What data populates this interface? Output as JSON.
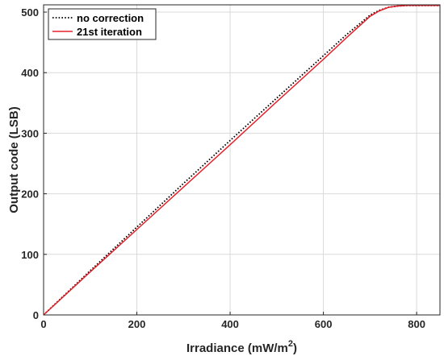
{
  "chart_data": {
    "type": "line",
    "title": "",
    "xlabel_main": "Irradiance (mW/m",
    "xlabel_sup": "2",
    "xlabel_close": ")",
    "ylabel": "Output code (LSB)",
    "xlim": [
      0,
      850
    ],
    "ylim": [
      0,
      512
    ],
    "xticks": [
      0,
      200,
      400,
      600,
      800
    ],
    "yticks": [
      0,
      100,
      200,
      300,
      400,
      500
    ],
    "grid": true,
    "legend_position": "top-left",
    "series": [
      {
        "name": "no correction",
        "color": "#000000",
        "style": "dotted",
        "x": [
          0,
          100,
          200,
          300,
          400,
          500,
          600,
          650,
          700,
          720,
          740,
          760,
          780,
          800,
          850
        ],
        "y": [
          0,
          73,
          145,
          217,
          288,
          358,
          428,
          463,
          495,
          503,
          508,
          510,
          511,
          511,
          511
        ]
      },
      {
        "name": "21st iteration",
        "color": "#e8202a",
        "style": "solid",
        "x": [
          0,
          100,
          200,
          300,
          400,
          500,
          600,
          650,
          700,
          720,
          740,
          760,
          780,
          800,
          850
        ],
        "y": [
          0,
          71,
          141,
          211,
          281,
          352,
          422,
          458,
          493,
          502,
          508,
          510,
          511,
          511,
          511
        ]
      }
    ]
  }
}
